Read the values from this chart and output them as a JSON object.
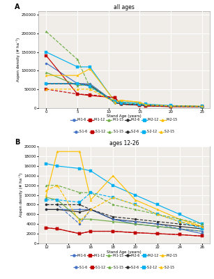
{
  "title_A": "all ages",
  "title_B": "ages 12-26",
  "label_A": "A",
  "label_B": "B",
  "xlabel": "Stand Age (years)",
  "ylabel": "Aspen density (# ha⁻¹)",
  "background_color": "#f0ede8",
  "series": {
    "M-1-6": {
      "color": "#4472c4",
      "dash": "solid",
      "marker": "o"
    },
    "M-1-12": {
      "color": "#c00000",
      "dash": "solid",
      "marker": "s"
    },
    "M-1-15": {
      "color": "#70ad47",
      "dash": "solid",
      "marker": "^"
    },
    "M-2-6": {
      "color": "#2d2d2d",
      "dash": "solid",
      "marker": "o"
    },
    "M-2-12": {
      "color": "#00b0f0",
      "dash": "solid",
      "marker": "s"
    },
    "M-2-15": {
      "color": "#ffc000",
      "dash": "solid",
      "marker": "^"
    },
    "S-1-6": {
      "color": "#4472c4",
      "dash": "dashed",
      "marker": "o"
    },
    "S-1-12": {
      "color": "#c00000",
      "dash": "dashed",
      "marker": "s"
    },
    "S-1-15": {
      "color": "#70ad47",
      "dash": "dashed",
      "marker": "^"
    },
    "S-2-6": {
      "color": "#2d2d2d",
      "dash": "dashed",
      "marker": "o"
    },
    "S-2-12": {
      "color": "#00b0f0",
      "dash": "dashed",
      "marker": "s"
    },
    "S-2-15": {
      "color": "#ffc000",
      "dash": "dashed",
      "marker": "^"
    }
  },
  "data_A": {
    "M-1-6": {
      "x": [
        0,
        5,
        7,
        11,
        12,
        15,
        16,
        20,
        25
      ],
      "y": [
        120000,
        65000,
        65000,
        15000,
        10000,
        8000,
        8000,
        5000,
        3000
      ]
    },
    "M-1-12": {
      "x": [
        0,
        5,
        7,
        11,
        12,
        15,
        16,
        20,
        25
      ],
      "y": [
        140000,
        37000,
        33000,
        27000,
        10000,
        7000,
        5000,
        3000,
        2500
      ]
    },
    "M-1-15": {
      "x": [
        0,
        5,
        7,
        11,
        12,
        15,
        16,
        20,
        25
      ],
      "y": [
        95000,
        60000,
        62000,
        15000,
        10000,
        7000,
        6000,
        4000,
        2500
      ]
    },
    "M-2-6": {
      "x": [
        0,
        5,
        7,
        11,
        12,
        15,
        16,
        20,
        25
      ],
      "y": [
        65000,
        65000,
        60000,
        15000,
        10000,
        8000,
        7000,
        5000,
        3500
      ]
    },
    "M-2-12": {
      "x": [
        0,
        5,
        7,
        11,
        12,
        15,
        16,
        20,
        25
      ],
      "y": [
        150000,
        110000,
        110000,
        17000,
        16000,
        12000,
        10000,
        6000,
        4000
      ]
    },
    "M-2-15": {
      "x": [
        0,
        5,
        7,
        11,
        12,
        15,
        16,
        20,
        25
      ],
      "y": [
        87000,
        87000,
        105000,
        18000,
        20000,
        15000,
        8000,
        5000,
        4000
      ]
    },
    "S-1-6": {
      "x": [
        0,
        5,
        7,
        11,
        12,
        15,
        16,
        20,
        25
      ],
      "y": [
        65000,
        65000,
        60000,
        14000,
        10000,
        7000,
        6000,
        4000,
        3000
      ]
    },
    "S-1-12": {
      "x": [
        0,
        5,
        7,
        11,
        12,
        15,
        16,
        20,
        25
      ],
      "y": [
        50000,
        37000,
        35000,
        28000,
        10000,
        7000,
        5000,
        3500,
        2500
      ]
    },
    "S-1-15": {
      "x": [
        0,
        5,
        7,
        11,
        12,
        15,
        16,
        20,
        25
      ],
      "y": [
        205000,
        130000,
        55000,
        17000,
        14000,
        10000,
        8000,
        5000,
        3500
      ]
    },
    "S-2-6": {
      "x": [
        0,
        5,
        7,
        11,
        12,
        15,
        16,
        20,
        25
      ],
      "y": [
        65000,
        65000,
        60000,
        14000,
        10000,
        8000,
        7000,
        5000,
        3500
      ]
    },
    "S-2-12": {
      "x": [
        0,
        5,
        7,
        11,
        12,
        15,
        16,
        20,
        25
      ],
      "y": [
        65000,
        65000,
        58000,
        16000,
        12000,
        9000,
        8000,
        5000,
        3500
      ]
    },
    "S-2-15": {
      "x": [
        0,
        5,
        7,
        11,
        12,
        15,
        16,
        20,
        25
      ],
      "y": [
        50000,
        50000,
        50000,
        15000,
        20000,
        15000,
        8000,
        5000,
        4000
      ]
    }
  },
  "data_B": {
    "M-1-6": {
      "x": [
        12,
        13,
        15,
        16,
        18,
        20,
        22,
        24,
        26
      ],
      "y": [
        7000,
        7000,
        7000,
        7000,
        5000,
        4000,
        3500,
        3000,
        2000
      ]
    },
    "M-1-12": {
      "x": [
        12,
        13,
        15,
        16,
        18,
        20,
        22,
        24,
        26
      ],
      "y": [
        3200,
        3000,
        2000,
        2500,
        2500,
        2200,
        2000,
        1800,
        1500
      ]
    },
    "M-1-15": {
      "x": [
        12,
        13,
        15,
        16,
        18,
        20,
        22,
        24,
        26
      ],
      "y": [
        9500,
        9000,
        5000,
        5000,
        4500,
        4000,
        3500,
        3000,
        2500
      ]
    },
    "M-2-6": {
      "x": [
        12,
        13,
        15,
        16,
        18,
        20,
        22,
        24,
        26
      ],
      "y": [
        7000,
        7000,
        6500,
        7000,
        5000,
        4500,
        4000,
        3500,
        3000
      ]
    },
    "M-2-12": {
      "x": [
        12,
        13,
        15,
        16,
        18,
        20,
        22,
        24,
        26
      ],
      "y": [
        16500,
        16000,
        15500,
        15000,
        12000,
        10000,
        8000,
        6000,
        4000
      ]
    },
    "M-2-15": {
      "x": [
        12,
        13,
        15,
        16,
        18,
        20,
        22,
        24,
        26
      ],
      "y": [
        10000,
        19000,
        19000,
        9000,
        14000,
        9000,
        7000,
        5000,
        3500
      ]
    },
    "S-1-6": {
      "x": [
        12,
        13,
        15,
        16,
        18,
        20,
        22,
        24,
        26
      ],
      "y": [
        8000,
        8000,
        4000,
        7000,
        5000,
        4500,
        4000,
        3000,
        2500
      ]
    },
    "S-1-12": {
      "x": [
        12,
        13,
        15,
        16,
        18,
        20,
        22,
        24,
        26
      ],
      "y": [
        3200,
        3000,
        2000,
        2500,
        2500,
        2200,
        2000,
        1800,
        1500
      ]
    },
    "S-1-15": {
      "x": [
        12,
        13,
        15,
        16,
        18,
        20,
        22,
        24,
        26
      ],
      "y": [
        12000,
        12000,
        10500,
        10500,
        8000,
        7000,
        6000,
        5000,
        4000
      ]
    },
    "S-2-6": {
      "x": [
        12,
        13,
        15,
        16,
        18,
        20,
        22,
        24,
        26
      ],
      "y": [
        8000,
        8000,
        8000,
        7000,
        5500,
        5000,
        4500,
        4000,
        3500
      ]
    },
    "S-2-12": {
      "x": [
        12,
        13,
        15,
        16,
        18,
        20,
        22,
        24,
        26
      ],
      "y": [
        9000,
        9000,
        8500,
        10500,
        9500,
        8000,
        6000,
        4500,
        3000
      ]
    },
    "S-2-15": {
      "x": [
        12,
        13,
        15,
        16,
        18,
        20,
        22,
        24,
        26
      ],
      "y": [
        11000,
        12000,
        4500,
        7000,
        9500,
        8000,
        6000,
        4500,
        3500
      ]
    }
  },
  "ylim_A": [
    0,
    260000
  ],
  "ylim_B": [
    0,
    20000
  ],
  "yticks_A": [
    0,
    50000,
    100000,
    150000,
    200000,
    250000
  ],
  "yticks_B": [
    0,
    2000,
    4000,
    6000,
    8000,
    10000,
    12000,
    14000,
    16000,
    18000,
    20000
  ],
  "xticks_A": [
    0,
    5,
    10,
    15,
    20,
    25
  ],
  "xticks_B": [
    12,
    14,
    16,
    18,
    20,
    22,
    24,
    26
  ],
  "grid_color": "#ffffff",
  "legend_row1": [
    "M-1-6",
    "M-1-12",
    "M-1-15",
    "M-2-6",
    "M-2-12",
    "M-2-15"
  ],
  "legend_row2": [
    "S-1-6",
    "S-1-12",
    "S-1-15",
    "S-2-6",
    "S-2-12",
    "S-2-15"
  ]
}
